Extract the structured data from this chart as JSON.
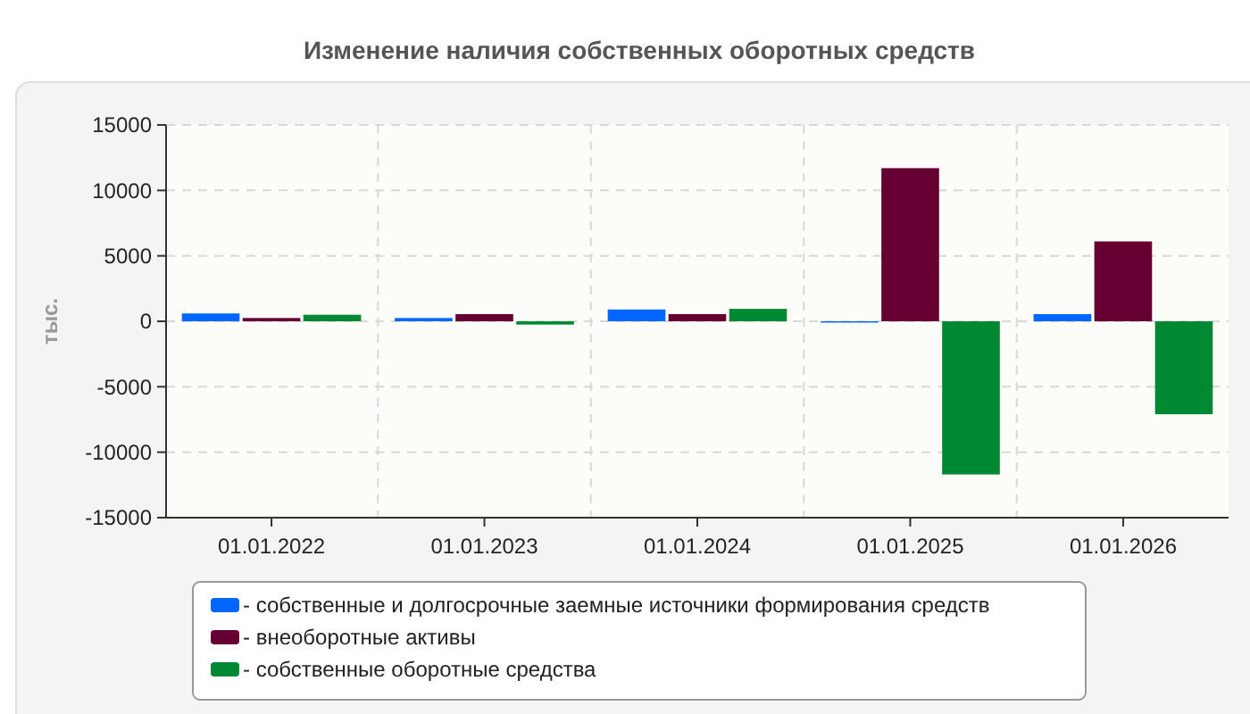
{
  "chart_data": {
    "type": "bar",
    "title": "Изменение наличия собственных оборотных средств",
    "ylabel": "тыс.",
    "categories": [
      "01.01.2022",
      "01.01.2023",
      "01.01.2024",
      "01.01.2025",
      "01.01.2026"
    ],
    "series": [
      {
        "name": "- собственные и долгосрочные заемные источники формирования средств",
        "color": "#0066ff",
        "values": [
          600,
          250,
          900,
          -100,
          550
        ]
      },
      {
        "name": "- внеоборотные активы",
        "color": "#660033",
        "values": [
          250,
          550,
          550,
          11700,
          6100
        ]
      },
      {
        "name": "- собственные оборотные средства",
        "color": "#008833",
        "values": [
          500,
          -250,
          950,
          -11700,
          -7100
        ]
      }
    ],
    "ylim": [
      -15000,
      15000
    ],
    "yticks": [
      -15000,
      -10000,
      -5000,
      0,
      5000,
      10000,
      15000
    ],
    "grid": true,
    "legend": "bottom"
  }
}
